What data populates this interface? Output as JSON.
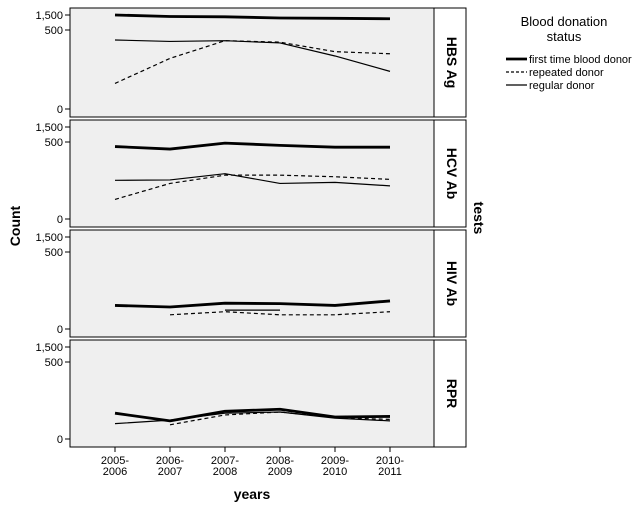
{
  "chart_data": {
    "type": "line",
    "xlabel": "years",
    "ylabel": "Count",
    "facet_label": "tests",
    "categories": [
      "2005-2006",
      "2006-2007",
      "2007-2008",
      "2008-2009",
      "2009-2010",
      "2010-2011"
    ],
    "category_lines": [
      [
        "2005-",
        "2006"
      ],
      [
        "2006-",
        "2007"
      ],
      [
        "2007-",
        "2008"
      ],
      [
        "2008-",
        "2009"
      ],
      [
        "2009-",
        "2010"
      ],
      [
        "2010-",
        "2011"
      ]
    ],
    "y_ticks": [
      "0",
      "500",
      "1,500"
    ],
    "legend": {
      "title_lines": [
        "Blood donation",
        "status"
      ],
      "placement": "right",
      "entries": [
        {
          "name": "first time blood donor",
          "style": "thick"
        },
        {
          "name": "repeated donor",
          "style": "dashed"
        },
        {
          "name": "regular donor",
          "style": "thin"
        }
      ]
    },
    "panels": [
      {
        "label": "HBS Ag",
        "series": [
          {
            "name": "first time blood donor",
            "values": [
              1500,
              1400,
              1380,
              1300,
              1280,
              1250
            ]
          },
          {
            "name": "repeated donor",
            "values": [
              20,
              140,
              330,
              310,
              200,
              180
            ]
          },
          {
            "name": "regular donor",
            "values": [
              340,
              320,
              330,
              300,
              160,
              60
            ]
          }
        ]
      },
      {
        "label": "HCV Ab",
        "series": [
          {
            "name": "first time blood donor",
            "values": [
              420,
              380,
              480,
              440,
              410,
              410
            ]
          },
          {
            "name": "repeated donor",
            "values": [
              10,
              55,
              100,
              100,
              90,
              75
            ]
          },
          {
            "name": "regular donor",
            "values": [
              70,
              72,
              110,
              55,
              60,
              45
            ]
          }
        ]
      },
      {
        "label": "HIV Ab",
        "series": [
          {
            "name": "first time blood donor",
            "values": [
              17,
              14,
              22,
              21,
              17,
              28
            ]
          },
          {
            "name": "repeated donor",
            "values": [
              null,
              4,
              7,
              4,
              4,
              7
            ]
          },
          {
            "name": "regular donor",
            "values": [
              null,
              null,
              9,
              9,
              null,
              4
            ]
          }
        ]
      },
      {
        "label": "RPR",
        "series": [
          {
            "name": "first time blood donor",
            "values": [
              22,
              8,
              27,
              33,
              14,
              15
            ]
          },
          {
            "name": "repeated donor",
            "values": [
              null,
              4,
              18,
              25,
              13,
              10
            ]
          },
          {
            "name": "regular donor",
            "values": [
              5,
              9,
              22,
              25,
              12,
              8
            ]
          }
        ]
      }
    ]
  }
}
